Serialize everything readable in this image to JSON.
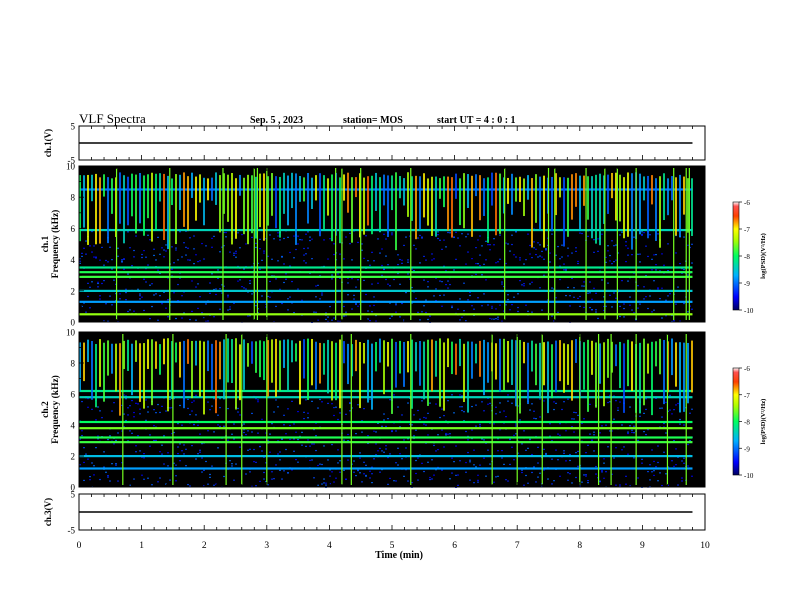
{
  "header": {
    "title": "VLF Spectra",
    "date": "Sep. 5 , 2023",
    "station": "station= MOS",
    "start": "start  UT =   4 : 0  : 1"
  },
  "chart_data": [
    {
      "type": "line",
      "name": "ch1-waveform",
      "ylabel": "ch.1(V)",
      "ylim": [
        -5,
        5
      ],
      "yticks": [
        "5",
        "-5"
      ],
      "x": [
        0,
        9.8
      ],
      "values": [
        0,
        0
      ]
    },
    {
      "type": "heatmap",
      "name": "ch1-spectrogram",
      "ylabel": "ch.1\nFrequency (kHz)",
      "ylabel_line1": "ch.1",
      "ylabel_line2": "Frequency (kHz)",
      "ylim": [
        0,
        10
      ],
      "yticks": [
        "0",
        "2",
        "4",
        "6",
        "8",
        "10"
      ],
      "data_xrange": [
        0,
        9.8
      ],
      "colorbar": {
        "label": "log(PSD)(V²/Hz)",
        "range": [
          -10,
          -6
        ],
        "ticks": [
          "-6",
          "-7",
          "-8",
          "-9",
          "-10"
        ]
      },
      "bands_khz": [
        {
          "f": 0.5,
          "level": -7.5
        },
        {
          "f": 1.3,
          "level": -8.8
        },
        {
          "f": 2.0,
          "level": -8.5
        },
        {
          "f": 2.9,
          "level": -7.8
        },
        {
          "f": 3.2,
          "level": -7.9
        },
        {
          "f": 3.5,
          "level": -8.2
        },
        {
          "f": 5.9,
          "level": -8.4
        },
        {
          "f": 8.5,
          "level": -9.0
        }
      ],
      "spikes_min": [
        0.6,
        1.45,
        2.3,
        2.8,
        2.85,
        3.0,
        4.1,
        4.2,
        4.5,
        5.3,
        6.8,
        7.5,
        7.6,
        8.1,
        8.4,
        8.6,
        8.9,
        9.5,
        9.7,
        9.75
      ]
    },
    {
      "type": "heatmap",
      "name": "ch2-spectrogram",
      "ylabel": "ch.2\nFrequency (kHz)",
      "ylabel_line1": "ch.2",
      "ylabel_line2": "Frequency (kHz)",
      "ylim": [
        0,
        10
      ],
      "yticks": [
        "0",
        "2",
        "4",
        "6",
        "8",
        "10"
      ],
      "data_xrange": [
        0,
        9.8
      ],
      "colorbar": {
        "label": "log(PSD)(V²/Hz)",
        "range": [
          -10,
          -6
        ],
        "ticks": [
          "-6",
          "-7",
          "-8",
          "-9",
          "-10"
        ]
      },
      "bands_khz": [
        {
          "f": 1.2,
          "level": -8.8
        },
        {
          "f": 2.0,
          "level": -8.6
        },
        {
          "f": 2.9,
          "level": -7.8
        },
        {
          "f": 3.2,
          "level": -7.9
        },
        {
          "f": 3.8,
          "level": -7.6
        },
        {
          "f": 4.2,
          "level": -8.0
        },
        {
          "f": 5.8,
          "level": -8.4
        },
        {
          "f": 6.2,
          "level": -8.2
        }
      ],
      "spikes_min": [
        0.7,
        1.5,
        2.35,
        2.6,
        3.0,
        4.2,
        4.35,
        5.3,
        6.6,
        7.0,
        7.4,
        8.0,
        8.3,
        8.5,
        8.9,
        9.4,
        9.7
      ]
    },
    {
      "type": "line",
      "name": "ch3-waveform",
      "ylabel": "ch.3(V)",
      "ylim": [
        -5,
        5
      ],
      "yticks": [
        "5",
        "-5"
      ],
      "x": [
        0,
        9.8
      ],
      "values": [
        0,
        0
      ]
    }
  ],
  "xaxis": {
    "label": "Time (min)",
    "range": [
      0,
      10
    ],
    "ticks": [
      "0",
      "1",
      "2",
      "3",
      "4",
      "5",
      "6",
      "7",
      "8",
      "9",
      "10"
    ]
  },
  "colors": {
    "background": "#000000",
    "noise_floor": "#1a2fd0",
    "axes": "#000000"
  }
}
